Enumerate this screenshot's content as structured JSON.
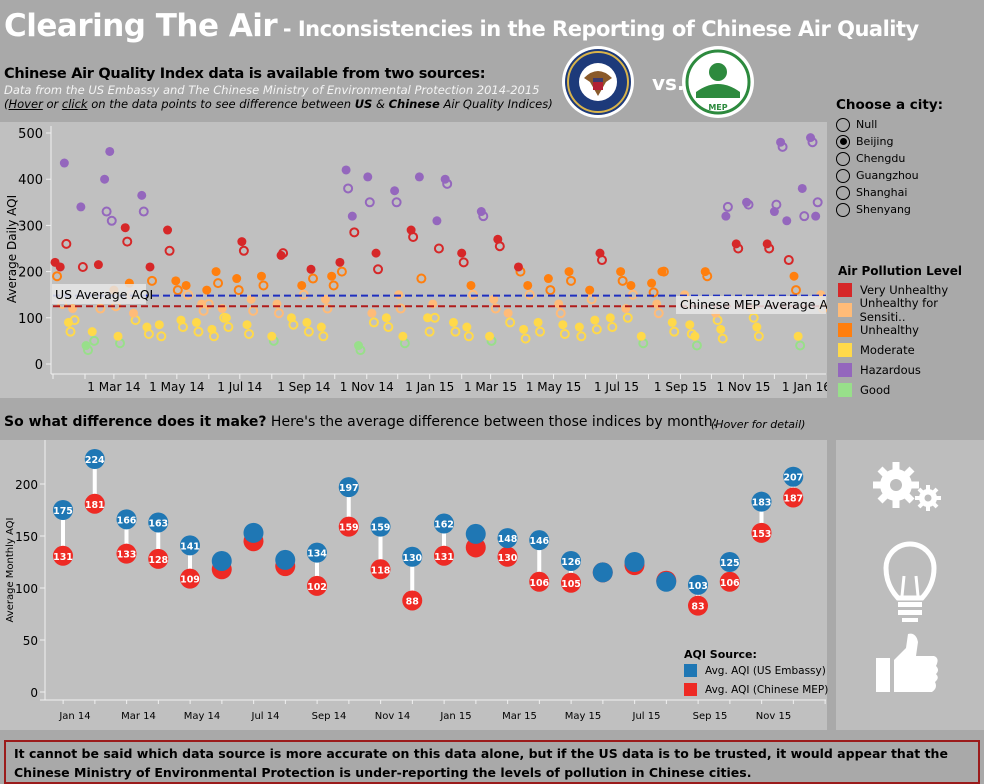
{
  "header": {
    "title": "Clearing The Air",
    "subtitle": "- Inconsistencies in the Reporting of Chinese Air Quality"
  },
  "intro": {
    "heading": "Chinese Air Quality Index data is available from two sources:",
    "source": "Data from the US Embassy and The Chinese Ministry of Environmental Protection 2014-2015",
    "hint_open": "(",
    "hint_hover": "Hover",
    "hint_or": " or ",
    "hint_click": "click",
    "hint_mid": " on the data points to see difference between ",
    "hint_us": "US",
    "hint_amp": " & ",
    "hint_cn": "Chinese",
    "hint_end": " Air Quality Indices)"
  },
  "logos": {
    "left": "US Embassy seal",
    "vs": "vs.",
    "right": "MEP logo",
    "left_text": "UNITED STATES OF AMERICA · EMBASSY",
    "right_text": "MEP"
  },
  "city_filter": {
    "title": "Choose a city:",
    "options": [
      "Null",
      "Beijing",
      "Chengdu",
      "Guangzhou",
      "Shanghai",
      "Shenyang"
    ],
    "selected": "Beijing"
  },
  "pollution_legend": {
    "title": "Air Pollution Level",
    "items": [
      {
        "label": "Very Unhealthy",
        "color": "#d62728"
      },
      {
        "label": "Unhealthy for Sensiti..",
        "color": "#ffbb78"
      },
      {
        "label": "Unhealthy",
        "color": "#ff7f0e"
      },
      {
        "label": "Moderate",
        "color": "#ffd94a"
      },
      {
        "label": "Hazardous",
        "color": "#9467bd"
      },
      {
        "label": "Good",
        "color": "#98df8a"
      }
    ]
  },
  "section2": {
    "question": "So what difference does it make?",
    "text": " Here's the average difference between those indices by month:",
    "hint": "(Hover for detail)"
  },
  "conclusion": "It cannot be said which data source is more accurate on this data alone, but if the US data is to be trusted, it would appear that the Chinese Ministry of Environmental Protection is under-reporting the levels of pollution in Chinese cities.",
  "side_icons": [
    "gears-icon",
    "lightbulb-icon",
    "thumbs-up-icon"
  ],
  "chart_data": [
    {
      "type": "scatter",
      "ylabel": "Average Daily AQI",
      "ylim": [
        0,
        500
      ],
      "yticks": [
        0,
        100,
        200,
        300,
        400,
        500
      ],
      "xlim": [
        "2014-01-01",
        "2016-01-20"
      ],
      "xticks": [
        {
          "date": "2014-03-01",
          "label": "1 Mar 14"
        },
        {
          "date": "2014-05-01",
          "label": "1 May 14"
        },
        {
          "date": "2014-07-01",
          "label": "1 Jul 14"
        },
        {
          "date": "2014-09-01",
          "label": "1 Sep 14"
        },
        {
          "date": "2014-11-01",
          "label": "1 Nov 14"
        },
        {
          "date": "2015-01-01",
          "label": "1 Jan 15"
        },
        {
          "date": "2015-03-01",
          "label": "1 Mar 15"
        },
        {
          "date": "2015-05-01",
          "label": "1 May 15"
        },
        {
          "date": "2015-07-01",
          "label": "1 Jul 15"
        },
        {
          "date": "2015-09-01",
          "label": "1 Sep 15"
        },
        {
          "date": "2015-11-01",
          "label": "1 Nov 15"
        },
        {
          "date": "2016-01-01",
          "label": "1 Jan 16"
        }
      ],
      "reference_lines": [
        {
          "label": "US Average AQI",
          "value": 148,
          "color": "#1f2fbf"
        },
        {
          "label": "Chinese MEP Average AQI",
          "value": 125,
          "color": "#b01c1c"
        }
      ],
      "point_style": {
        "us": "filled",
        "mep": "hollow"
      },
      "levels": [
        {
          "max": 50,
          "color": "#98df8a"
        },
        {
          "max": 100,
          "color": "#ffd94a"
        },
        {
          "max": 150,
          "color": "#ffbb78"
        },
        {
          "max": 200,
          "color": "#ff7f0e"
        },
        {
          "max": 300,
          "color": "#d62728"
        },
        {
          "max": 1000,
          "color": "#9467bd"
        }
      ],
      "columns": [
        "date",
        "us",
        "mep"
      ],
      "points": [
        [
          "2014-01-03",
          220,
          190
        ],
        [
          "2014-01-08",
          210,
          130
        ],
        [
          "2014-01-12",
          435,
          260
        ],
        [
          "2014-01-16",
          90,
          70
        ],
        [
          "2014-01-20",
          120,
          95
        ],
        [
          "2014-01-28",
          340,
          210
        ],
        [
          "2014-02-02",
          40,
          30
        ],
        [
          "2014-02-08",
          70,
          50
        ],
        [
          "2014-02-14",
          215,
          120
        ],
        [
          "2014-02-20",
          400,
          330
        ],
        [
          "2014-02-25",
          460,
          310
        ],
        [
          "2014-03-01",
          160,
          125
        ],
        [
          "2014-03-05",
          60,
          45
        ],
        [
          "2014-03-12",
          295,
          265
        ],
        [
          "2014-03-16",
          175,
          150
        ],
        [
          "2014-03-20",
          110,
          95
        ],
        [
          "2014-03-28",
          365,
          330
        ],
        [
          "2014-04-02",
          80,
          65
        ],
        [
          "2014-04-05",
          210,
          180
        ],
        [
          "2014-04-14",
          85,
          60
        ],
        [
          "2014-04-22",
          290,
          245
        ],
        [
          "2014-04-30",
          180,
          160
        ],
        [
          "2014-05-05",
          95,
          80
        ],
        [
          "2014-05-10",
          170,
          150
        ],
        [
          "2014-05-20",
          90,
          70
        ],
        [
          "2014-05-25",
          130,
          115
        ],
        [
          "2014-05-30",
          160,
          130
        ],
        [
          "2014-06-04",
          75,
          60
        ],
        [
          "2014-06-08",
          200,
          175
        ],
        [
          "2014-06-14",
          120,
          100
        ],
        [
          "2014-06-18",
          100,
          80
        ],
        [
          "2014-06-28",
          185,
          160
        ],
        [
          "2014-07-03",
          265,
          245
        ],
        [
          "2014-07-08",
          85,
          65
        ],
        [
          "2014-07-12",
          140,
          115
        ],
        [
          "2014-07-22",
          190,
          170
        ],
        [
          "2014-08-01",
          60,
          50
        ],
        [
          "2014-08-06",
          130,
          110
        ],
        [
          "2014-08-10",
          235,
          240
        ],
        [
          "2014-08-20",
          100,
          85
        ],
        [
          "2014-08-30",
          170,
          150
        ],
        [
          "2014-09-04",
          90,
          70
        ],
        [
          "2014-09-08",
          205,
          185
        ],
        [
          "2014-09-18",
          80,
          60
        ],
        [
          "2014-09-22",
          140,
          120
        ],
        [
          "2014-09-28",
          190,
          170
        ],
        [
          "2014-10-06",
          220,
          200
        ],
        [
          "2014-10-12",
          420,
          380
        ],
        [
          "2014-10-18",
          320,
          285
        ],
        [
          "2014-10-24",
          40,
          30
        ],
        [
          "2014-11-02",
          405,
          350
        ],
        [
          "2014-11-06",
          110,
          90
        ],
        [
          "2014-11-10",
          240,
          205
        ],
        [
          "2014-11-20",
          100,
          80
        ],
        [
          "2014-11-28",
          375,
          350
        ],
        [
          "2014-12-02",
          150,
          120
        ],
        [
          "2014-12-06",
          60,
          45
        ],
        [
          "2014-12-14",
          290,
          275
        ],
        [
          "2014-12-22",
          405,
          185
        ],
        [
          "2014-12-30",
          100,
          70
        ],
        [
          "2015-01-04",
          130,
          100
        ],
        [
          "2015-01-08",
          310,
          250
        ],
        [
          "2015-01-16",
          400,
          390
        ],
        [
          "2015-01-24",
          90,
          70
        ],
        [
          "2015-02-01",
          240,
          220
        ],
        [
          "2015-02-06",
          80,
          60
        ],
        [
          "2015-02-10",
          170,
          150
        ],
        [
          "2015-02-20",
          330,
          320
        ],
        [
          "2015-02-28",
          60,
          50
        ],
        [
          "2015-03-04",
          140,
          120
        ],
        [
          "2015-03-08",
          270,
          255
        ],
        [
          "2015-03-18",
          110,
          90
        ],
        [
          "2015-03-28",
          210,
          200
        ],
        [
          "2015-04-02",
          75,
          55
        ],
        [
          "2015-04-06",
          170,
          150
        ],
        [
          "2015-04-16",
          90,
          70
        ],
        [
          "2015-04-26",
          185,
          160
        ],
        [
          "2015-05-06",
          130,
          110
        ],
        [
          "2015-05-10",
          85,
          65
        ],
        [
          "2015-05-16",
          200,
          180
        ],
        [
          "2015-05-26",
          80,
          60
        ],
        [
          "2015-06-05",
          160,
          140
        ],
        [
          "2015-06-10",
          95,
          75
        ],
        [
          "2015-06-15",
          240,
          225
        ],
        [
          "2015-06-25",
          100,
          80
        ],
        [
          "2015-07-05",
          200,
          180
        ],
        [
          "2015-07-10",
          120,
          100
        ],
        [
          "2015-07-15",
          170,
          150
        ],
        [
          "2015-07-25",
          60,
          45
        ],
        [
          "2015-08-04",
          175,
          155
        ],
        [
          "2015-08-09",
          130,
          110
        ],
        [
          "2015-08-14",
          200,
          200
        ],
        [
          "2015-08-24",
          90,
          70
        ],
        [
          "2015-09-05",
          150,
          130
        ],
        [
          "2015-09-10",
          85,
          65
        ],
        [
          "2015-09-15",
          60,
          40
        ],
        [
          "2015-09-25",
          200,
          190
        ],
        [
          "2015-10-05",
          110,
          95
        ],
        [
          "2015-10-10",
          75,
          55
        ],
        [
          "2015-10-15",
          320,
          340
        ],
        [
          "2015-10-25",
          260,
          250
        ],
        [
          "2015-11-04",
          350,
          345
        ],
        [
          "2015-11-09",
          120,
          100
        ],
        [
          "2015-11-14",
          80,
          60
        ],
        [
          "2015-11-24",
          260,
          250
        ],
        [
          "2015-12-01",
          330,
          345
        ],
        [
          "2015-12-07",
          480,
          470
        ],
        [
          "2015-12-13",
          310,
          225
        ],
        [
          "2015-12-20",
          190,
          160
        ],
        [
          "2015-12-24",
          60,
          40
        ],
        [
          "2015-12-28",
          380,
          320
        ],
        [
          "2016-01-05",
          490,
          480
        ],
        [
          "2016-01-10",
          320,
          350
        ],
        [
          "2016-01-15",
          150,
          120
        ]
      ]
    },
    {
      "type": "dumbbell",
      "ylabel": "Average Monthly AQI",
      "ylim": [
        0,
        230
      ],
      "yticks": [
        0,
        50,
        100,
        150,
        200
      ],
      "legend": {
        "title": "AQI Source:",
        "placement": "bottom-right"
      },
      "series": [
        {
          "name": "Avg. AQI (US Embassy)",
          "key": "us",
          "color": "#1f77b4"
        },
        {
          "name": "Avg. AQI (Chinese MEP)",
          "key": "mep",
          "color": "#ee2a24"
        }
      ],
      "xtick_labels": [
        "Jan 14",
        "Mar 14",
        "May 14",
        "Jul 14",
        "Sep 14",
        "Nov 14",
        "Jan 15",
        "Mar 15",
        "May 15",
        "Jul 15",
        "Sep 15",
        "Nov 15"
      ],
      "months": [
        {
          "month": "2014-01",
          "us": 175,
          "mep": 131,
          "labeled": true
        },
        {
          "month": "2014-02",
          "us": 224,
          "mep": 181,
          "labeled": true
        },
        {
          "month": "2014-03",
          "us": 166,
          "mep": 133,
          "labeled": true
        },
        {
          "month": "2014-04",
          "us": 163,
          "mep": 128,
          "labeled": true
        },
        {
          "month": "2014-05",
          "us": 141,
          "mep": 109,
          "labeled": true
        },
        {
          "month": "2014-06",
          "us": 126,
          "mep": 118,
          "labeled": false
        },
        {
          "month": "2014-07",
          "us": 153,
          "mep": 145,
          "labeled": false
        },
        {
          "month": "2014-08",
          "us": 127,
          "mep": 121,
          "labeled": false
        },
        {
          "month": "2014-09",
          "us": 134,
          "mep": 102,
          "labeled": true
        },
        {
          "month": "2014-10",
          "us": 197,
          "mep": 159,
          "labeled": true
        },
        {
          "month": "2014-11",
          "us": 159,
          "mep": 118,
          "labeled": true
        },
        {
          "month": "2014-12",
          "us": 130,
          "mep": 88,
          "labeled": true
        },
        {
          "month": "2015-01",
          "us": 162,
          "mep": 131,
          "labeled": true
        },
        {
          "month": "2015-02",
          "us": 152,
          "mep": 139,
          "labeled": false
        },
        {
          "month": "2015-03",
          "us": 148,
          "mep": 130,
          "labeled": true
        },
        {
          "month": "2015-04",
          "us": 146,
          "mep": 106,
          "labeled": true
        },
        {
          "month": "2015-05",
          "us": 126,
          "mep": 105,
          "labeled": true
        },
        {
          "month": "2015-06",
          "us": 115,
          "mep": 115,
          "labeled": false
        },
        {
          "month": "2015-07",
          "us": 125,
          "mep": 122,
          "labeled": false
        },
        {
          "month": "2015-08",
          "us": 106,
          "mep": 107,
          "labeled": false
        },
        {
          "month": "2015-09",
          "us": 103,
          "mep": 83,
          "labeled": true
        },
        {
          "month": "2015-10",
          "us": 125,
          "mep": 106,
          "labeled": true
        },
        {
          "month": "2015-11",
          "us": 183,
          "mep": 153,
          "labeled": true
        },
        {
          "month": "2015-12",
          "us": 207,
          "mep": 187,
          "labeled": true
        }
      ]
    }
  ]
}
